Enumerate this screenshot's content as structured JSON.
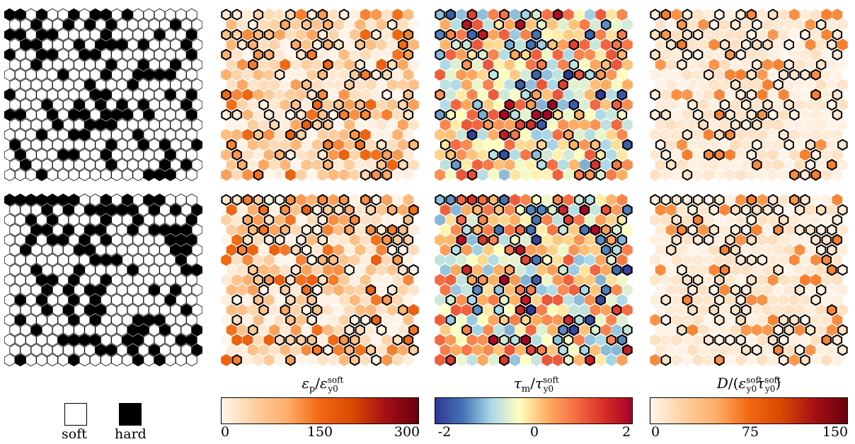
{
  "legend": {
    "soft_label": "soft",
    "hard_label": "hard",
    "colors": {
      "soft": "#ffffff",
      "hard": "#000000"
    }
  },
  "colorbars": [
    {
      "title": "εp/εsofty0",
      "ticks": [
        "0",
        "150",
        "300"
      ],
      "gradient": [
        "#fff5eb",
        "#fdd0a2",
        "#fdae6b",
        "#f16913",
        "#d94801",
        "#a50f15",
        "#67000d"
      ]
    },
    {
      "title": "τm/τsofty0",
      "ticks": [
        "-2",
        "0",
        "2"
      ],
      "gradient": [
        "#313695",
        "#4575b4",
        "#abd9e9",
        "#ffffbf",
        "#fdae61",
        "#f46d43",
        "#d73027",
        "#a50026"
      ]
    },
    {
      "title": "D/(εsofty0τsofty0)",
      "ticks": [
        "0",
        "75",
        "150"
      ],
      "gradient": [
        "#fff5eb",
        "#fdd0a2",
        "#fdae6b",
        "#f16913",
        "#d94801",
        "#a50f15",
        "#67000d"
      ]
    }
  ],
  "rows": [
    "configuration-1",
    "configuration-2"
  ],
  "columns": [
    "phase-map",
    "plastic-strain-map",
    "stress-map",
    "dissipation-map"
  ]
}
